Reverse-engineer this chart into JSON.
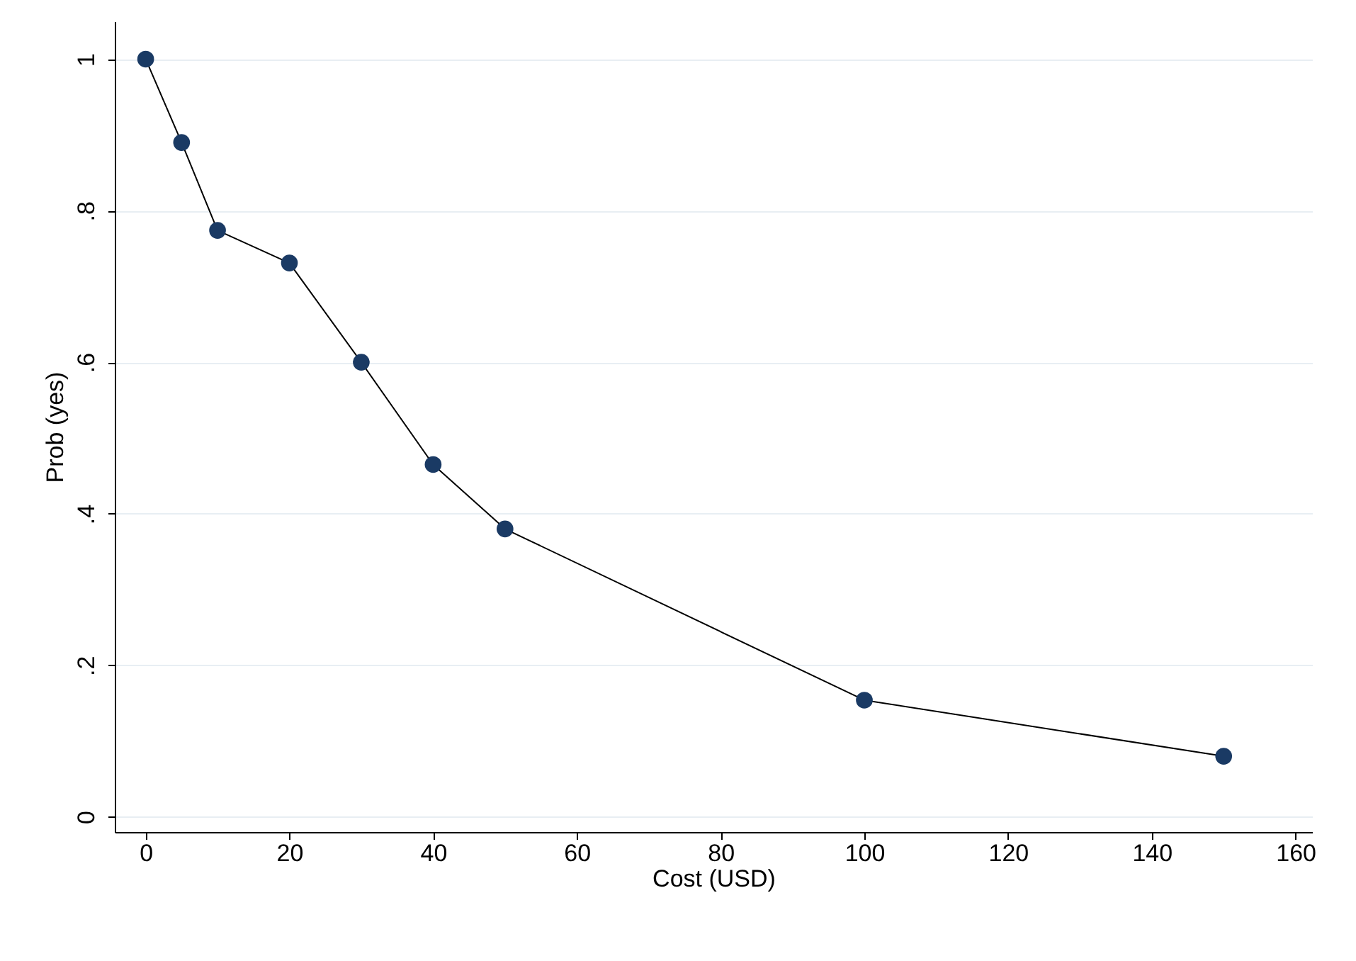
{
  "chart_data": {
    "type": "line",
    "xlabel": "Cost (USD)",
    "ylabel": "Prob (yes)",
    "x": [
      0,
      5,
      10,
      20,
      30,
      40,
      50,
      100,
      150
    ],
    "series": [
      {
        "color": "#1a3a64",
        "values": [
          1.0,
          0.89,
          0.774,
          0.731,
          0.6,
          0.465,
          0.38,
          0.154,
          0.08
        ]
      }
    ],
    "xlim": [
      -4.3,
      162.3
    ],
    "xticks": [
      0,
      20,
      40,
      60,
      80,
      100,
      120,
      140,
      160
    ],
    "ylim": [
      -0.02,
      1.05
    ],
    "yticks": [
      0,
      {
        "value": 0.2,
        "label": ".2"
      },
      {
        "value": 0.4,
        "label": ".4"
      },
      {
        "value": 0.6,
        "label": ".6"
      },
      {
        "value": 0.8,
        "label": ".8"
      },
      1
    ],
    "grid": "y",
    "marker": "circle",
    "line_style": "solid"
  }
}
